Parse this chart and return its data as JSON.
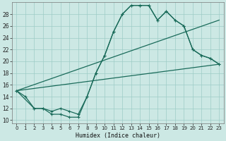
{
  "title": "",
  "xlabel": "Humidex (Indice chaleur)",
  "ylabel": "",
  "bg_color": "#cce8e4",
  "grid_color": "#9eccc6",
  "line_color": "#1a6b5a",
  "xlim": [
    -0.5,
    23.5
  ],
  "ylim": [
    9.5,
    30
  ],
  "xticks": [
    0,
    1,
    2,
    3,
    4,
    5,
    6,
    7,
    8,
    9,
    10,
    11,
    12,
    13,
    14,
    15,
    16,
    17,
    18,
    19,
    20,
    21,
    22,
    23
  ],
  "yticks": [
    10,
    12,
    14,
    16,
    18,
    20,
    22,
    24,
    26,
    28
  ],
  "series1_x": [
    0,
    1,
    2,
    3,
    4,
    5,
    6,
    7,
    8,
    9,
    10,
    11,
    12,
    13,
    14,
    15,
    16,
    17,
    18,
    19,
    20,
    21,
    22,
    23
  ],
  "series1_y": [
    15,
    14,
    12,
    12,
    11,
    11,
    10.5,
    10.5,
    14,
    18,
    21,
    25,
    28,
    29.5,
    29.5,
    29.5,
    27,
    28.5,
    27,
    26,
    22,
    21,
    20.5,
    19.5
  ],
  "series2_x": [
    0,
    23
  ],
  "series2_y": [
    15,
    19.5
  ],
  "series3_x": [
    0,
    23
  ],
  "series3_y": [
    15,
    27
  ],
  "series4_x": [
    0,
    2,
    3,
    4,
    5,
    6,
    7,
    8,
    9,
    10,
    11,
    12,
    13,
    14,
    15,
    16,
    17,
    18,
    19,
    20,
    21,
    22,
    23
  ],
  "series4_y": [
    15,
    12,
    12,
    11.5,
    12,
    11.5,
    11,
    14,
    18,
    21,
    25,
    28,
    29.5,
    29.5,
    29.5,
    27,
    28.5,
    27,
    26,
    22,
    21,
    20.5,
    19.5
  ]
}
